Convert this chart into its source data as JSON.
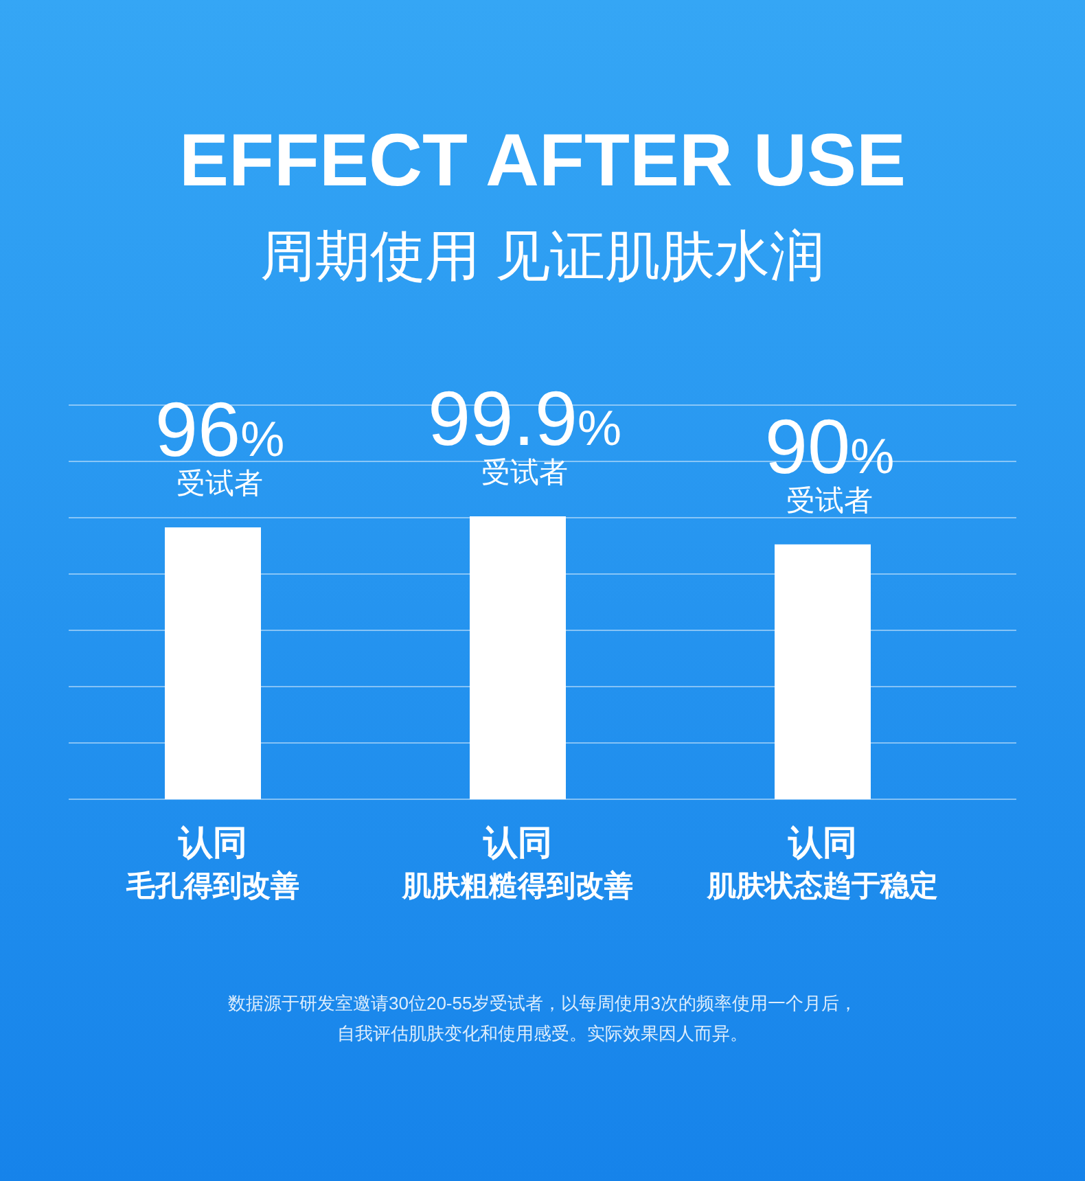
{
  "chart_data": {
    "type": "bar",
    "title": "EFFECT AFTER USE",
    "subtitle": "周期使用 见证肌肤水润",
    "categories": [
      "认同毛孔得到改善",
      "认同肌肤粗糙得到改善",
      "认同肌肤状态趋于稳定"
    ],
    "values": [
      96,
      99.9,
      90
    ],
    "color": "#ffffff",
    "value_labels": [
      "96%",
      "99.9%",
      "90%"
    ],
    "grid": "y",
    "annotations": [
      {
        "text": "受试者",
        "x": "认同毛孔得到改善",
        "y": 96
      },
      {
        "text": "受试者",
        "x": "认同肌肤粗糙得到改善",
        "y": 99.9
      },
      {
        "text": "受试者",
        "x": "认同肌肤状态趋于稳定",
        "y": 90
      },
      "数据源于研发室邀请30位20-55岁受试者，以每周使用3次的频率使用一个月后，",
      "自我评估肌肤变化和使用感受。实际效果因人而异。"
    ]
  }
}
